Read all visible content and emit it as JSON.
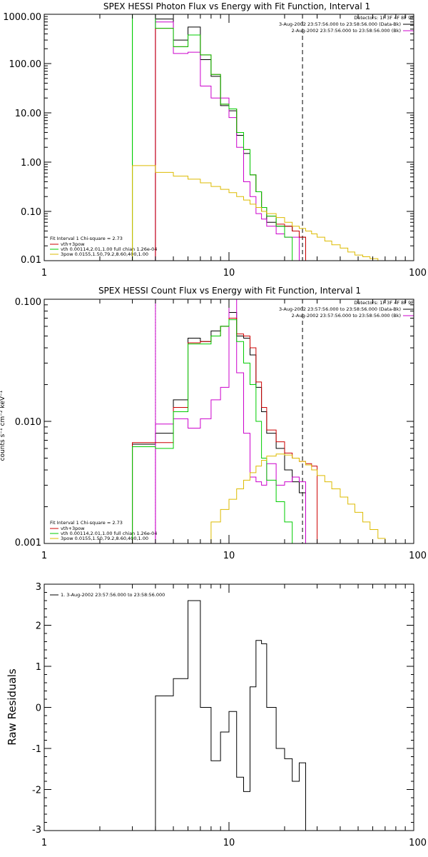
{
  "chart_data": [
    {
      "type": "line",
      "title": "SPEX HESSI Photon Flux vs Energy with Fit Function, Interval 1",
      "xlabel": "",
      "ylabel": "",
      "xscale": "log",
      "yscale": "log",
      "xlim": [
        1,
        100
      ],
      "ylim": [
        0.01,
        1000
      ],
      "xticks": [
        {
          "v": 1,
          "label": "1"
        },
        {
          "v": 10,
          "label": "10"
        },
        {
          "v": 100,
          "label": "100"
        }
      ],
      "yticks": [
        {
          "v": 1000,
          "label": "1000.00"
        },
        {
          "v": 100,
          "label": "100.00"
        },
        {
          "v": 10,
          "label": "10.00"
        },
        {
          "v": 1,
          "label": "1.00"
        },
        {
          "v": 0.1,
          "label": "0.10"
        },
        {
          "v": 0.01,
          "label": "0.01"
        }
      ],
      "vlines": [
        {
          "x": 3,
          "color": "#00cc00",
          "style": "solid"
        },
        {
          "x": 4,
          "color": "#cc00cc",
          "style": "solid"
        },
        {
          "x": 25,
          "color": "#000000",
          "style": "dashed"
        }
      ],
      "series": [
        {
          "name": "Black data",
          "color": "#000000",
          "edges": [
            4,
            5,
            6,
            7,
            8,
            9,
            10,
            11,
            12,
            13,
            14,
            15,
            16,
            18,
            20,
            22,
            24,
            26
          ],
          "values": [
            800,
            300,
            550,
            120,
            55,
            14,
            11,
            3.5,
            1.5,
            0.55,
            0.25,
            0.1,
            0.06,
            0.05,
            0.05,
            0.04,
            0.03
          ]
        },
        {
          "name": "Magenta data",
          "color": "#cc00cc",
          "edges": [
            4,
            5,
            6,
            7,
            8,
            9,
            10,
            11,
            12,
            13,
            14,
            15,
            16,
            18,
            20,
            22,
            24,
            26
          ],
          "values": [
            700,
            160,
            170,
            35,
            20,
            20,
            8,
            2,
            0.4,
            0.2,
            0.09,
            0.07,
            0.05,
            0.035,
            0.03,
            0.03,
            0.01
          ]
        },
        {
          "name": "vth+3pow",
          "color": "#cc0000",
          "edges": [
            4,
            5,
            6,
            7,
            8,
            9,
            10,
            11,
            12,
            13,
            14,
            15,
            16,
            18,
            20,
            22,
            24,
            26
          ],
          "values": [
            520,
            220,
            380,
            150,
            60,
            15,
            12,
            4,
            1.8,
            0.55,
            0.25,
            0.12,
            0.08,
            0.055,
            0.05,
            0.04,
            0.03
          ]
        },
        {
          "name": "vth 0.00114,2.01,1.00  full chian 1.26e-04",
          "color": "#00cc00",
          "edges": [
            3,
            4,
            5,
            6,
            7,
            8,
            9,
            10,
            11,
            12,
            13,
            14,
            15,
            16,
            18,
            20,
            22,
            24
          ],
          "values": [
            1200,
            520,
            220,
            380,
            150,
            60,
            15,
            12,
            4,
            1.8,
            0.55,
            0.25,
            0.12,
            0.08,
            0.05,
            0.03,
            0.01
          ]
        },
        {
          "name": "3pow 0.0155,1.50,79.2,8.60,400,1.00",
          "color": "#ddbb00",
          "edges": [
            3,
            4,
            5,
            6,
            7,
            8,
            9,
            10,
            11,
            12,
            13,
            14,
            15,
            16,
            18,
            20,
            22,
            24,
            26,
            28,
            30,
            33,
            36,
            40,
            44,
            48,
            53,
            58,
            64,
            70
          ],
          "values": [
            0.85,
            0.62,
            0.52,
            0.45,
            0.38,
            0.32,
            0.28,
            0.24,
            0.2,
            0.17,
            0.14,
            0.12,
            0.1,
            0.09,
            0.075,
            0.06,
            0.05,
            0.045,
            0.04,
            0.035,
            0.03,
            0.025,
            0.021,
            0.018,
            0.015,
            0.013,
            0.012,
            0.011,
            0.01
          ]
        }
      ]
    },
    {
      "type": "line",
      "title": "SPEX HESSI Count Flux vs Energy with Fit Function, Interval 1",
      "xlabel": "",
      "ylabel": "",
      "xscale": "log",
      "yscale": "log",
      "xlim": [
        1,
        100
      ],
      "ylim": [
        0.001,
        0.1
      ],
      "xticks": [
        {
          "v": 1,
          "label": "1"
        },
        {
          "v": 10,
          "label": "10"
        },
        {
          "v": 100,
          "label": "100"
        }
      ],
      "yticks": [
        {
          "v": 0.1,
          "label": "0.100"
        },
        {
          "v": 0.01,
          "label": "0.010"
        },
        {
          "v": 0.001,
          "label": "0.001"
        }
      ],
      "vlines": [
        {
          "x": 4,
          "color": "#000000",
          "style": "dotted"
        },
        {
          "x": 4,
          "color": "#cc00cc",
          "style": "solid"
        },
        {
          "x": 25,
          "color": "#000000",
          "style": "dashed"
        }
      ],
      "series": [
        {
          "name": "Black data",
          "color": "#000000",
          "edges": [
            3,
            4,
            5,
            6,
            7,
            8,
            9,
            10,
            11,
            12,
            13,
            14,
            15,
            16,
            18,
            20,
            22,
            24,
            26
          ],
          "values": [
            0.0065,
            0.008,
            0.015,
            0.048,
            0.045,
            0.055,
            0.06,
            0.078,
            0.05,
            0.048,
            0.035,
            0.019,
            0.012,
            0.008,
            0.006,
            0.004,
            0.0032,
            0.0026
          ]
        },
        {
          "name": "Magenta data",
          "color": "#cc00cc",
          "edges": [
            4,
            5,
            6,
            7,
            8,
            9,
            10,
            11,
            12,
            13,
            14,
            15,
            16,
            18,
            20,
            22,
            24,
            26
          ],
          "values": [
            0.0095,
            0.0105,
            0.0088,
            0.0105,
            0.015,
            0.019,
            0.1,
            0.025,
            0.008,
            0.0035,
            0.0032,
            0.003,
            0.0045,
            0.003,
            0.0032,
            0.0035,
            0.0032
          ]
        },
        {
          "name": "vth+3pow",
          "color": "#cc0000",
          "edges": [
            3,
            4,
            5,
            6,
            7,
            8,
            9,
            10,
            11,
            12,
            13,
            14,
            15,
            16,
            18,
            20,
            22,
            24,
            26,
            28,
            30
          ],
          "values": [
            0.0067,
            0.0067,
            0.013,
            0.044,
            0.045,
            0.05,
            0.06,
            0.07,
            0.052,
            0.05,
            0.04,
            0.021,
            0.013,
            0.0085,
            0.0068,
            0.0055,
            0.005,
            0.0047,
            0.0045,
            0.0043
          ]
        },
        {
          "name": "vth 0.00114,2.01,1.00  full chian 1.26e-04",
          "color": "#00cc00",
          "edges": [
            3,
            4,
            5,
            6,
            7,
            8,
            9,
            10,
            11,
            12,
            13,
            14,
            15,
            16,
            18,
            20,
            22,
            24
          ],
          "values": [
            0.0062,
            0.006,
            0.012,
            0.043,
            0.043,
            0.05,
            0.06,
            0.068,
            0.045,
            0.03,
            0.02,
            0.01,
            0.005,
            0.0033,
            0.0022,
            0.0015,
            0.001
          ]
        },
        {
          "name": "3pow 0.0155,1.50,79.2,8.60,400,1.00",
          "color": "#ddbb00",
          "edges": [
            7,
            8,
            9,
            10,
            11,
            12,
            13,
            14,
            15,
            16,
            18,
            20,
            22,
            24,
            26,
            28,
            30,
            33,
            36,
            40,
            44,
            48,
            53,
            58,
            64,
            70,
            80
          ],
          "values": [
            0.001,
            0.0015,
            0.0019,
            0.0023,
            0.0028,
            0.0033,
            0.0038,
            0.0043,
            0.0048,
            0.0052,
            0.0054,
            0.0053,
            0.005,
            0.0047,
            0.0044,
            0.004,
            0.0036,
            0.0032,
            0.0028,
            0.0024,
            0.0021,
            0.0018,
            0.0015,
            0.0013,
            0.0011,
            0.001
          ]
        }
      ]
    },
    {
      "type": "line",
      "title": "",
      "xlabel": "",
      "ylabel": "Raw Residuals",
      "xscale": "log",
      "yscale": "linear",
      "xlim": [
        1,
        100
      ],
      "ylim": [
        -3,
        3
      ],
      "xticks": [
        {
          "v": 1,
          "label": "1"
        },
        {
          "v": 10,
          "label": "10"
        },
        {
          "v": 100,
          "label": "100"
        }
      ],
      "yticks": [
        {
          "v": 3,
          "label": "3"
        },
        {
          "v": 2,
          "label": "2"
        },
        {
          "v": 1,
          "label": "1"
        },
        {
          "v": 0,
          "label": "0"
        },
        {
          "v": -1,
          "label": "-1"
        },
        {
          "v": -2,
          "label": "-2"
        },
        {
          "v": -3,
          "label": "-3"
        }
      ],
      "vlines": [],
      "series": [
        {
          "name": "1.  3-Aug-2002 23:57:56.000 to 23:58:56.000",
          "color": "#000000",
          "edges": [
            4,
            5,
            6,
            7,
            8,
            9,
            10,
            11,
            12,
            13,
            14,
            15,
            16,
            18,
            20,
            22,
            24,
            26
          ],
          "values": [
            0.28,
            0.7,
            2.6,
            0,
            -1.3,
            -0.6,
            -0.1,
            -1.7,
            -2.05,
            0.5,
            1.63,
            1.55,
            0,
            -1,
            -1.25,
            -1.8,
            -1.35
          ]
        }
      ]
    }
  ],
  "panel1": {
    "detectors": "Detectors: 1F 3F 4F 8F 9F",
    "interval_a": "3-Aug-2002 23:57:56.000 to 23:58:56.000 (Data-Bk)",
    "interval_b": "2-Aug-2002 23:57:56.000 to 23:58:56.000 (Bk)",
    "fit_line": "Fit Interval 1    Chi-square = 2.73",
    "legend_1": "vth+3pow",
    "legend_2": "vth 0.00114,2.01,1.00  full chian 1.26e-04",
    "legend_3": "3pow 0.0155,1.50,79.2,8.60,400,1.00"
  },
  "panel2": {
    "detectors": "Detectors: 1F 3F 4F 8F 9F",
    "interval_a": "3-Aug-2002 23:57:56.000 to 23:58:56.000 (Data-Bk)",
    "interval_b": "2-Aug-2002 23:57:56.000 to 23:58:56.000 (Bk)",
    "fit_line": "Fit Interval 1    Chi-square = 2.73",
    "legend_1": "vth+3pow",
    "legend_2": "vth 0.00114,2.01,1.00  full chian 1.26e-04",
    "legend_3": "3pow 0.0155,1.50,79.2,8.60,400,1.00",
    "ylabel_fragment": "counts s⁻¹ cm⁻² keV⁻¹"
  },
  "panel3": {
    "legend_1": "1.  3-Aug-2002 23:57:56.000 to 23:58:56.000"
  },
  "colors": {
    "black": "#000000",
    "magenta": "#cc00cc",
    "red": "#cc0000",
    "green": "#00cc00",
    "yellow": "#ddbb00"
  }
}
